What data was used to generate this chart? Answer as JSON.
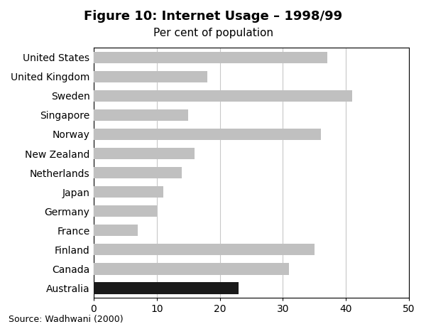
{
  "title": "Figure 10: Internet Usage – 1998/99",
  "subtitle": "Per cent of population",
  "source": "Source: Wadhwani (2000)",
  "categories": [
    "United States",
    "United Kingdom",
    "Sweden",
    "Singapore",
    "Norway",
    "New Zealand",
    "Netherlands",
    "Japan",
    "Germany",
    "France",
    "Finland",
    "Canada",
    "Australia"
  ],
  "values": [
    37,
    18,
    41,
    15,
    36,
    16,
    14,
    11,
    10,
    7,
    35,
    31,
    23
  ],
  "bar_colors": [
    "#c0c0c0",
    "#c0c0c0",
    "#c0c0c0",
    "#c0c0c0",
    "#c0c0c0",
    "#c0c0c0",
    "#c0c0c0",
    "#c0c0c0",
    "#c0c0c0",
    "#c0c0c0",
    "#c0c0c0",
    "#c0c0c0",
    "#1a1a1a"
  ],
  "xlim": [
    0,
    50
  ],
  "xticks": [
    0,
    10,
    20,
    30,
    40,
    50
  ],
  "background_color": "#ffffff",
  "title_fontsize": 13,
  "subtitle_fontsize": 11,
  "tick_fontsize": 10,
  "source_fontsize": 9
}
